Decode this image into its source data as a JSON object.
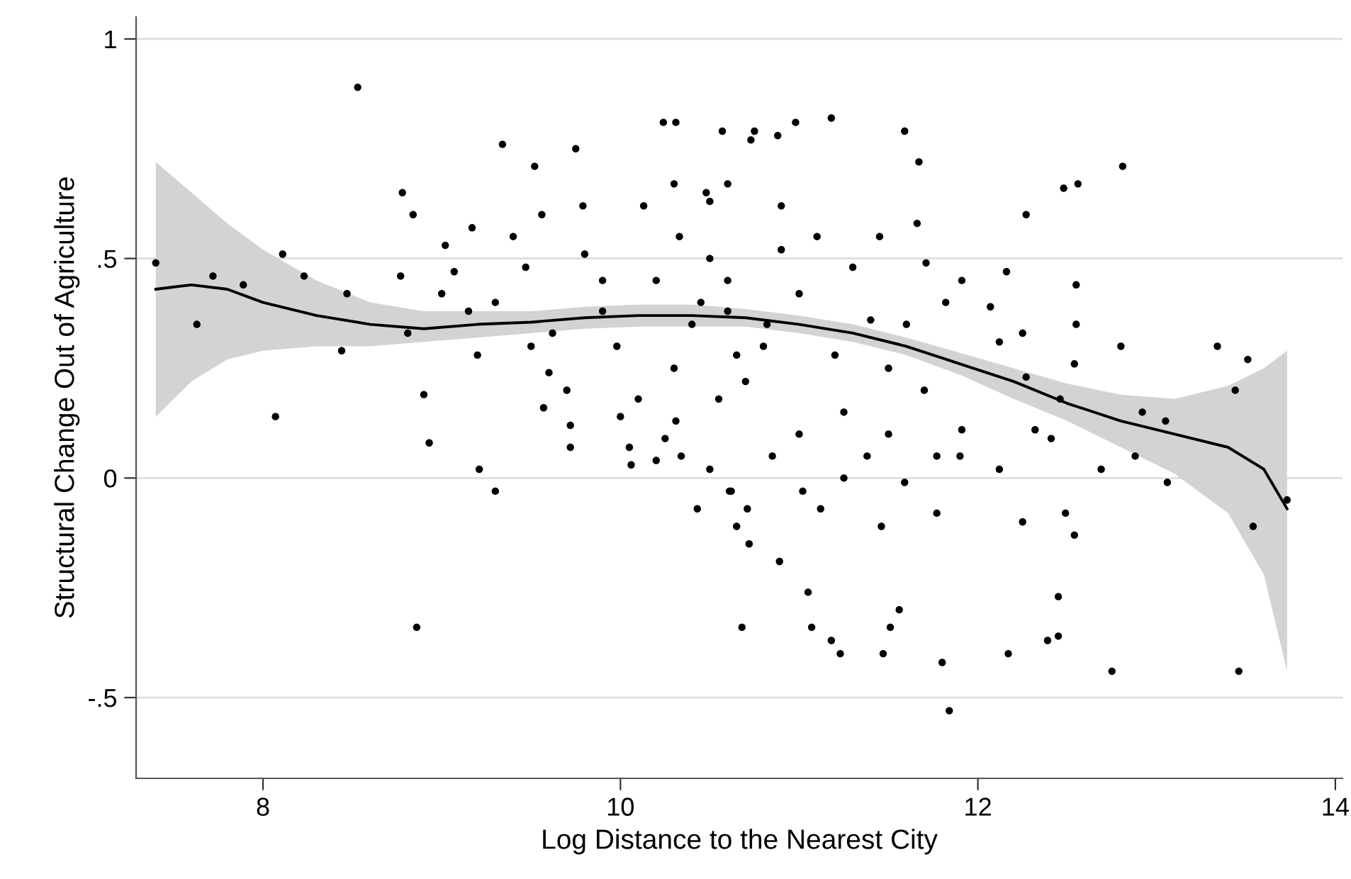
{
  "chart_data": {
    "type": "scatter",
    "xlabel": "Log Distance to the Nearest City",
    "ylabel": "Structural Change Out of Agriculture",
    "xlim": [
      7.29,
      14.04
    ],
    "ylim": [
      -0.684,
      1.05
    ],
    "xticks": [
      8,
      10,
      12,
      14
    ],
    "yticks": [
      {
        "value": -0.5,
        "label": "-.5"
      },
      0,
      {
        "value": 0.5,
        "label": ".5"
      },
      1
    ],
    "grid": "y",
    "marker": "circle",
    "series": [
      {
        "color": "#000000",
        "x": [
          7.4,
          7.63,
          7.72,
          7.89,
          8.07,
          8.11,
          8.23,
          8.47,
          8.53,
          8.44,
          8.78,
          8.84,
          8.81,
          8.77,
          8.86,
          8.9,
          8.93,
          9.07,
          9.15,
          9.21,
          9.3,
          9.34,
          9.4,
          9.47,
          9.52,
          9.56,
          9.6,
          9.62,
          9.75,
          9.72,
          9.8,
          9.9,
          9.98,
          10.0,
          10.05,
          10.13,
          10.2,
          10.31,
          10.33,
          10.45,
          10.5,
          10.55,
          10.6,
          10.65,
          10.71,
          10.75,
          10.82,
          10.85,
          10.88,
          10.68,
          10.65,
          10.72,
          10.89,
          11.05,
          11.07,
          11.18,
          11.23,
          11.47,
          11.51,
          11.56,
          11.8,
          11.84,
          12.17,
          12.39,
          12.45,
          12.45,
          12.75,
          13.46,
          13.54,
          13.73,
          13.44,
          13.51,
          13.34,
          13.06,
          13.05,
          12.92,
          12.88,
          12.8,
          12.81,
          12.69,
          12.56,
          12.48,
          12.55,
          12.55,
          12.54,
          12.54,
          12.49,
          12.46,
          12.41,
          12.32,
          12.27,
          12.25,
          12.27,
          12.25,
          12.16,
          12.12,
          12.12,
          12.07,
          11.91,
          11.82,
          11.91,
          11.9,
          11.77,
          11.77,
          11.59,
          11.46,
          11.59,
          11.67,
          11.18,
          10.98,
          10.73,
          10.57,
          11.66,
          11.71,
          11.5,
          11.38,
          11.12,
          11.02,
          10.62,
          11.25,
          10.4,
          10.6,
          10.8,
          11.0,
          11.2,
          11.4,
          10.9,
          11.1,
          11.3,
          10.5,
          10.7,
          11.5,
          11.6,
          10.3,
          10.2,
          9.9,
          9.5,
          9.3,
          9.7,
          10.1,
          11.25,
          11.0,
          10.9,
          11.45,
          11.7,
          9.2,
          9.0,
          10.6,
          10.24,
          10.43,
          10.3,
          10.48,
          9.79,
          9.17,
          9.02,
          9.57,
          9.72,
          10.06,
          10.31,
          10.34,
          10.25,
          10.5,
          10.61
        ],
        "values": [
          0.49,
          0.35,
          0.46,
          0.44,
          0.14,
          0.51,
          0.46,
          0.42,
          0.89,
          0.29,
          0.65,
          0.6,
          0.33,
          0.46,
          -0.34,
          0.19,
          0.08,
          0.47,
          0.38,
          0.02,
          -0.03,
          0.76,
          0.55,
          0.48,
          0.71,
          0.6,
          0.24,
          0.33,
          0.75,
          0.12,
          0.51,
          0.45,
          0.3,
          0.14,
          0.07,
          0.62,
          0.04,
          0.81,
          0.55,
          0.4,
          0.63,
          0.18,
          0.45,
          0.28,
          -0.07,
          0.79,
          0.35,
          0.05,
          0.78,
          -0.34,
          -0.11,
          -0.15,
          -0.19,
          -0.26,
          -0.34,
          -0.37,
          -0.4,
          -0.4,
          -0.34,
          -0.3,
          -0.42,
          -0.53,
          -0.4,
          -0.37,
          -0.36,
          -0.27,
          -0.44,
          -0.44,
          -0.11,
          -0.05,
          0.2,
          0.27,
          0.3,
          -0.01,
          0.13,
          0.15,
          0.05,
          0.3,
          0.71,
          0.02,
          0.67,
          0.66,
          0.44,
          0.35,
          0.26,
          -0.13,
          -0.08,
          0.18,
          0.09,
          0.11,
          0.6,
          0.33,
          0.23,
          -0.1,
          0.47,
          0.31,
          0.02,
          0.39,
          0.45,
          0.4,
          0.11,
          0.05,
          0.05,
          -0.08,
          -0.01,
          -0.11,
          0.79,
          0.72,
          0.82,
          0.81,
          0.77,
          0.79,
          0.58,
          0.49,
          0.1,
          0.05,
          -0.07,
          -0.03,
          -0.03,
          0.0,
          0.35,
          0.38,
          0.3,
          0.42,
          0.28,
          0.36,
          0.52,
          0.55,
          0.48,
          0.5,
          0.22,
          0.25,
          0.35,
          0.25,
          0.45,
          0.38,
          0.3,
          0.4,
          0.2,
          0.18,
          0.15,
          0.1,
          0.62,
          0.55,
          0.2,
          0.28,
          0.42,
          0.67,
          0.81,
          -0.07,
          0.67,
          0.65,
          0.62,
          0.57,
          0.53,
          0.16,
          0.07,
          0.03,
          0.13,
          0.05,
          0.09,
          0.02,
          -0.03
        ]
      },
      {
        "type": "line",
        "color": "#000000",
        "marker": "none",
        "line_style": "solid",
        "x": [
          7.4,
          7.6,
          7.8,
          8.0,
          8.3,
          8.6,
          8.9,
          9.2,
          9.5,
          9.8,
          10.1,
          10.4,
          10.7,
          11.0,
          11.3,
          11.6,
          11.9,
          12.2,
          12.5,
          12.8,
          13.1,
          13.4,
          13.6,
          13.73
        ],
        "values": [
          0.43,
          0.44,
          0.43,
          0.4,
          0.37,
          0.35,
          0.34,
          0.35,
          0.355,
          0.365,
          0.37,
          0.37,
          0.365,
          0.35,
          0.33,
          0.3,
          0.26,
          0.22,
          0.17,
          0.13,
          0.1,
          0.07,
          0.02,
          -0.07
        ],
        "lower": [
          0.14,
          0.22,
          0.27,
          0.29,
          0.3,
          0.3,
          0.31,
          0.32,
          0.33,
          0.34,
          0.345,
          0.345,
          0.345,
          0.33,
          0.31,
          0.28,
          0.235,
          0.18,
          0.13,
          0.07,
          0.01,
          -0.08,
          -0.22,
          -0.44
        ],
        "upper": [
          0.72,
          0.65,
          0.58,
          0.52,
          0.45,
          0.4,
          0.38,
          0.38,
          0.38,
          0.39,
          0.395,
          0.395,
          0.385,
          0.37,
          0.35,
          0.32,
          0.285,
          0.25,
          0.215,
          0.19,
          0.18,
          0.21,
          0.25,
          0.29
        ]
      }
    ]
  }
}
